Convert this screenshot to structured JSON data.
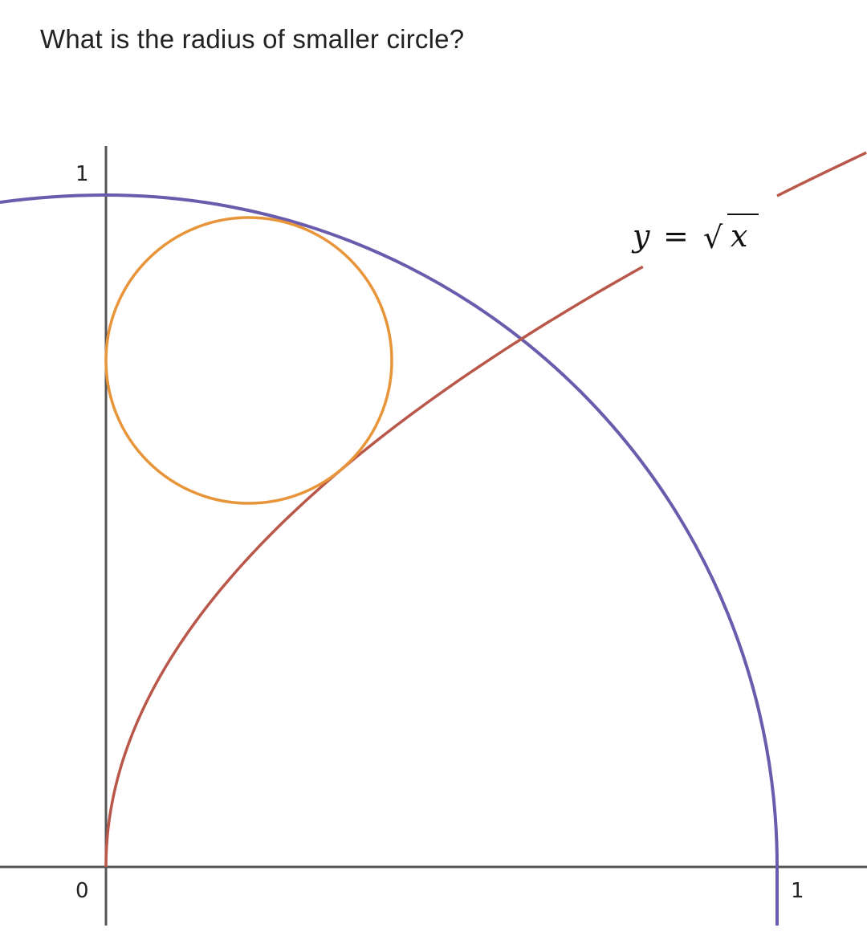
{
  "question": "What is the radius of smaller circle?",
  "diagram": {
    "curve_label": {
      "y": "y",
      "equals": "=",
      "radical": "√",
      "x": "x"
    },
    "tick_labels": {
      "y_one": "1",
      "origin": "0",
      "x_one": "1"
    },
    "colors": {
      "quarter_circle": "#6a5cad",
      "sqrt_curve": "#b9584a",
      "small_circle": "#e8953a",
      "axes": "#555555"
    },
    "shapes": {
      "quarter_circle": {
        "center": [
          0,
          0
        ],
        "radius": 1
      },
      "sqrt_curve": {
        "equation": "y = sqrt(x)"
      },
      "small_circle": {
        "tangent_to": [
          "y-axis",
          "quarter_circle",
          "sqrt_curve"
        ]
      }
    }
  }
}
